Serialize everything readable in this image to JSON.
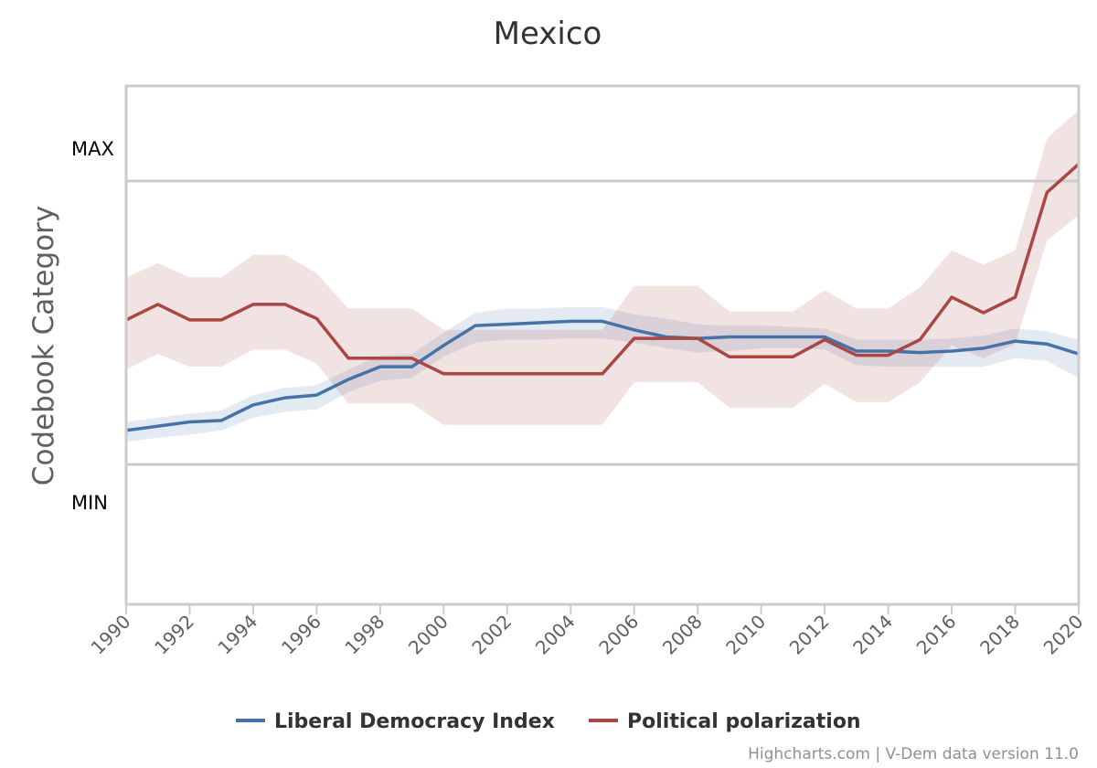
{
  "chart_data": {
    "type": "line",
    "title": "Mexico",
    "ylabel": "Codebook Category",
    "y_band_labels": {
      "max": "MAX",
      "min": "MIN"
    },
    "xlim": [
      1990,
      2020
    ],
    "x_ticks": [
      "1990",
      "1992",
      "1994",
      "1996",
      "1998",
      "2000",
      "2002",
      "2004",
      "2006",
      "2008",
      "2010",
      "2012",
      "2014",
      "2016",
      "2018",
      "2020"
    ],
    "grid": true,
    "legend": "bottom-center",
    "x": [
      1990,
      1991,
      1992,
      1993,
      1994,
      1995,
      1996,
      1997,
      1998,
      1999,
      2000,
      2001,
      2002,
      2003,
      2004,
      2005,
      2006,
      2007,
      2008,
      2009,
      2010,
      2011,
      2012,
      2013,
      2014,
      2015,
      2016,
      2017,
      2018,
      2019,
      2020
    ],
    "series": [
      {
        "name": "Liberal Democracy Index",
        "color": "#4572a7",
        "values": [
          0.12,
          0.135,
          0.15,
          0.155,
          0.21,
          0.235,
          0.245,
          0.3,
          0.345,
          0.345,
          0.42,
          0.49,
          0.495,
          0.5,
          0.505,
          0.505,
          0.475,
          0.45,
          0.445,
          0.45,
          0.45,
          0.45,
          0.45,
          0.4,
          0.4,
          0.395,
          0.4,
          0.41,
          0.435,
          0.425,
          0.39
        ],
        "upper": [
          0.15,
          0.165,
          0.18,
          0.19,
          0.245,
          0.27,
          0.28,
          0.335,
          0.385,
          0.39,
          0.465,
          0.535,
          0.55,
          0.55,
          0.555,
          0.555,
          0.53,
          0.515,
          0.495,
          0.49,
          0.49,
          0.485,
          0.48,
          0.44,
          0.44,
          0.44,
          0.445,
          0.455,
          0.48,
          0.47,
          0.44
        ],
        "lower": [
          0.08,
          0.095,
          0.105,
          0.12,
          0.165,
          0.185,
          0.195,
          0.255,
          0.295,
          0.305,
          0.38,
          0.43,
          0.44,
          0.44,
          0.445,
          0.445,
          0.43,
          0.41,
          0.395,
          0.4,
          0.41,
          0.41,
          0.405,
          0.35,
          0.345,
          0.345,
          0.345,
          0.345,
          0.375,
          0.365,
          0.305
        ]
      },
      {
        "name": "Political polarization",
        "color": "#aa4643",
        "values": [
          0.51,
          0.565,
          0.51,
          0.51,
          0.565,
          0.565,
          0.515,
          0.375,
          0.375,
          0.375,
          0.32,
          0.32,
          0.32,
          0.32,
          0.32,
          0.32,
          0.445,
          0.445,
          0.445,
          0.38,
          0.38,
          0.38,
          0.44,
          0.385,
          0.385,
          0.44,
          0.59,
          0.535,
          0.59,
          0.96,
          1.06
        ],
        "upper": [
          0.66,
          0.71,
          0.66,
          0.66,
          0.74,
          0.74,
          0.675,
          0.55,
          0.55,
          0.55,
          0.475,
          0.475,
          0.475,
          0.475,
          0.475,
          0.475,
          0.63,
          0.63,
          0.63,
          0.54,
          0.54,
          0.54,
          0.615,
          0.55,
          0.55,
          0.625,
          0.755,
          0.705,
          0.755,
          1.15,
          1.25
        ],
        "lower": [
          0.335,
          0.39,
          0.345,
          0.345,
          0.405,
          0.405,
          0.355,
          0.215,
          0.215,
          0.215,
          0.14,
          0.14,
          0.14,
          0.14,
          0.14,
          0.14,
          0.29,
          0.29,
          0.29,
          0.2,
          0.2,
          0.2,
          0.285,
          0.22,
          0.22,
          0.29,
          0.42,
          0.375,
          0.425,
          0.79,
          0.88
        ]
      }
    ]
  },
  "credits": "Highcharts.com | V-Dem data version 11.0"
}
